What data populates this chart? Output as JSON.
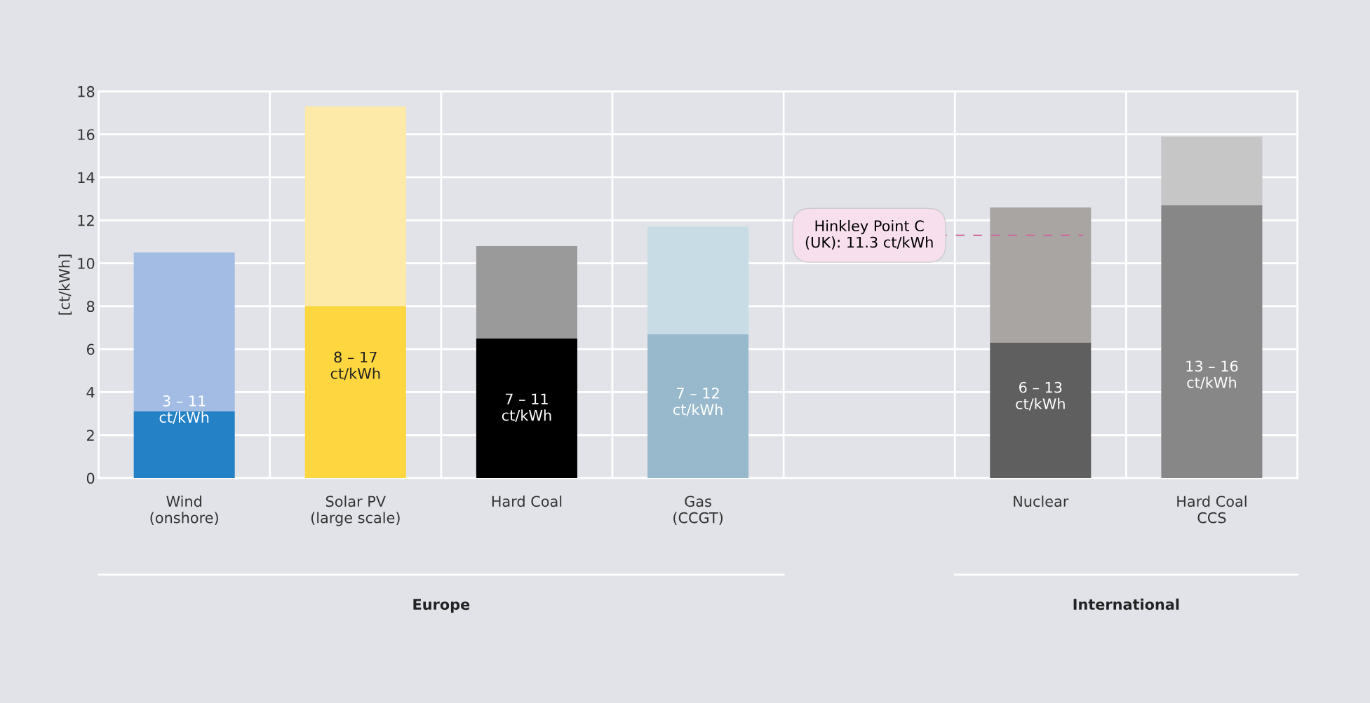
{
  "chart_data": {
    "type": "bar",
    "stacked": true,
    "ylabel": "[ct/kWh]",
    "categories": [
      "Wind\n(onshore)",
      "Solar PV\n(large scale)",
      "Hard Coal",
      "Gas\n(CCGT)",
      null,
      "Nuclear",
      "Hard Coal\nCCS"
    ],
    "series": [
      {
        "colors": [
          "#2481c6",
          "#fdd640",
          "#000000",
          "#98b9cc",
          null,
          "#5f5f5f",
          "#878787"
        ],
        "values": [
          3.1,
          8.0,
          6.5,
          6.7,
          null,
          6.3,
          12.7
        ],
        "value_labels": [
          "3 – 11\nct/kWh",
          "8 – 17\nct/kWh",
          "7 – 11\nct/kWh",
          "7 – 12\nct/kWh",
          null,
          "6 – 13\nct/kWh",
          "13 – 16\nct/kWh"
        ]
      },
      {
        "colors": [
          "#a3bce3",
          "#fde9a8",
          "#9a9a9a",
          "#c8dce6",
          null,
          "#a8a5a3",
          "#c6c6c7"
        ],
        "values": [
          7.4,
          9.3,
          4.3,
          5.0,
          null,
          6.3,
          3.2
        ]
      }
    ],
    "ylim": [
      0,
      18
    ],
    "yticks": [
      0,
      2,
      4,
      6,
      8,
      10,
      12,
      14,
      16,
      18
    ],
    "grid": true,
    "ref_lines": [
      {
        "axis": "y",
        "value": 11.3,
        "label": "Hinkley Point C\n(UK): 11.3 ct/kWh",
        "color": "#d4649a",
        "line_style": "dashed"
      }
    ],
    "annotations": [
      "Europe",
      "International"
    ]
  }
}
